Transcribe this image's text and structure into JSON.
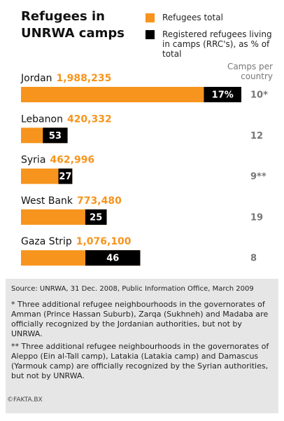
{
  "chart_data": {
    "type": "bar",
    "title": "Refugees in UNRWA camps",
    "categories": [
      "Jordan",
      "Lebanon",
      "Syria",
      "West Bank",
      "Gaza Strip"
    ],
    "series": [
      {
        "name": "Refugees total",
        "color": "#f7941d",
        "values": [
          1988235,
          420332,
          462996,
          773480,
          1076100
        ],
        "value_labels": [
          "1,988,235",
          "420,332",
          "462,996",
          "773,480",
          "1,076,100"
        ]
      },
      {
        "name": "Registered refugees living in camps (RRC's), as % of total",
        "color": "#000000",
        "values": [
          17,
          53,
          27,
          25,
          46
        ],
        "value_labels": [
          "17%",
          "53",
          "27",
          "25",
          "46"
        ]
      }
    ],
    "camps": {
      "label": "Camps per country",
      "values": [
        10,
        12,
        9,
        19,
        8
      ],
      "value_labels": [
        "10*",
        "12",
        "9**",
        "19",
        "8"
      ]
    }
  },
  "notes": {
    "source": "Source: UNRWA, 31 Dec. 2008, Public Information Office, March 2009",
    "footnotes": [
      "* Three additional refugee neighbourhoods in the governorates of Amman (Prince Hassan Suburb), Zarqa (Sukhneh) and Madaba are officially recognized by the Jordanian authorities, but not by UNRWA.",
      "** Three additional refugee neighbourhoods in the governorates of Aleppo (Ein al-Tall camp), Latakia (Latakia camp) and Damascus (Yarmouk camp) are officially recognized by the Syrian authorities, but not by UNRWA."
    ],
    "credit": "©FAKTA.BX"
  }
}
